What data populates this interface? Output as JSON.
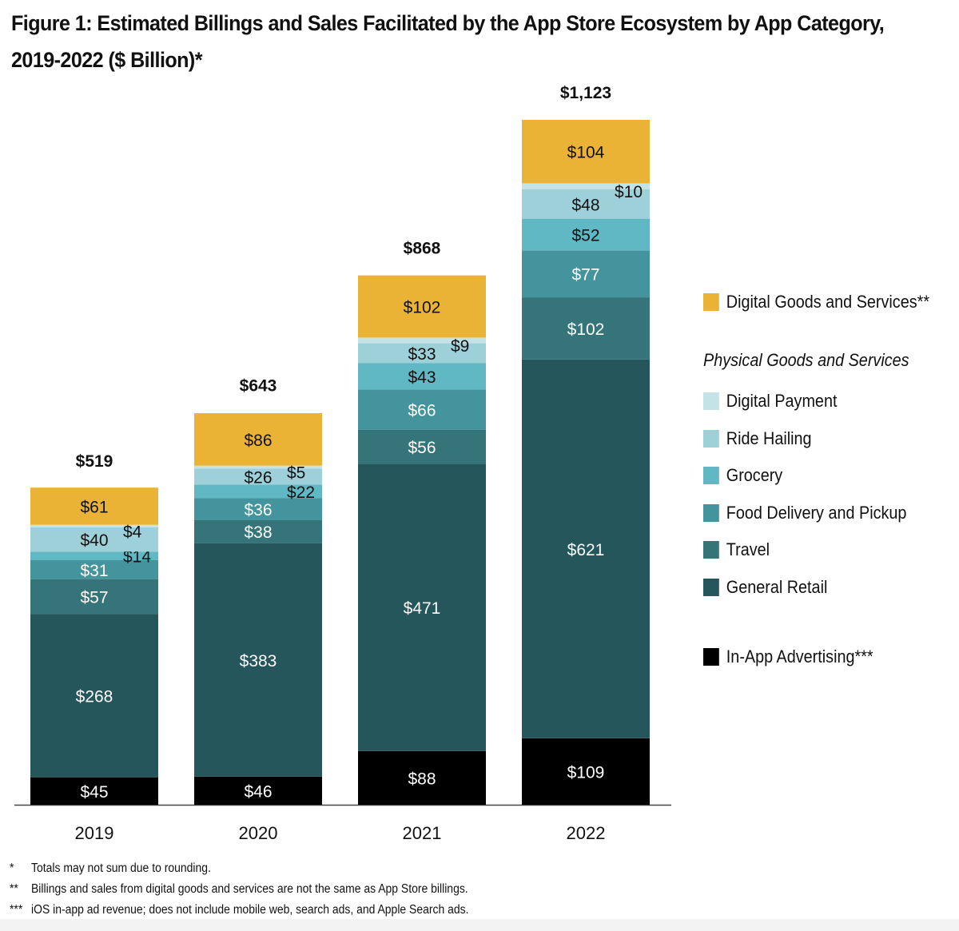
{
  "title": "Figure 1: Estimated Billings and Sales Facilitated by the App Store Ecosystem by App Category, 2019-2022 ($ Billion)*",
  "chart_data": {
    "type": "bar",
    "stacked": true,
    "title": "Figure 1: Estimated Billings and Sales Facilitated by the App Store Ecosystem by App Category, 2019-2022 ($ Billion)*",
    "xlabel": "",
    "ylabel": "",
    "ylim": [
      0,
      1123
    ],
    "grid": false,
    "legend_position": "right",
    "categories": [
      "2019",
      "2020",
      "2021",
      "2022"
    ],
    "totals": [
      519,
      643,
      868,
      1123
    ],
    "total_labels": [
      "$519",
      "$643",
      "$868",
      "$1,123"
    ],
    "series": [
      {
        "name": "In-App Advertising***",
        "color": "#000000",
        "label_color": "#ffffff",
        "values": [
          45,
          46,
          88,
          109
        ]
      },
      {
        "name": "General Retail",
        "color": "#24565c",
        "label_color": "#ffffff",
        "values": [
          268,
          383,
          471,
          621
        ]
      },
      {
        "name": "Travel",
        "color": "#357479",
        "label_color": "#ffffff",
        "values": [
          57,
          38,
          56,
          102
        ]
      },
      {
        "name": "Food Delivery and Pickup",
        "color": "#43949c",
        "label_color": "#ffffff",
        "values": [
          31,
          36,
          66,
          77
        ]
      },
      {
        "name": "Grocery",
        "color": "#5fb8c3",
        "label_color": "#111111",
        "values": [
          14,
          22,
          43,
          52
        ]
      },
      {
        "name": "Ride Hailing",
        "color": "#9dd0d8",
        "label_color": "#111111",
        "values": [
          40,
          26,
          33,
          48
        ]
      },
      {
        "name": "Digital Payment",
        "color": "#c4e3e7",
        "label_color": "#111111",
        "values": [
          4,
          5,
          9,
          10
        ]
      },
      {
        "name": "Digital Goods and Services**",
        "color": "#ebb336",
        "label_color": "#111111",
        "values": [
          61,
          86,
          102,
          104
        ]
      }
    ],
    "outside_labels": [
      {
        "category": "2019",
        "series": "Digital Payment",
        "text": "$4"
      },
      {
        "category": "2019",
        "series": "Grocery",
        "text": "$14"
      },
      {
        "category": "2020",
        "series": "Digital Payment",
        "text": "$5"
      },
      {
        "category": "2020",
        "series": "Grocery",
        "text": "$22"
      },
      {
        "category": "2021",
        "series": "Digital Payment",
        "text": "$9"
      },
      {
        "category": "2022",
        "series": "Digital Payment",
        "text": "$10"
      }
    ]
  },
  "legend": {
    "digital_goods": "Digital Goods and Services**",
    "physical_heading": "Physical Goods and Services",
    "physical_items": [
      "Digital Payment",
      "Ride Hailing",
      "Grocery",
      "Food Delivery and Pickup",
      "Travel",
      "General Retail"
    ],
    "advertising": "In-App Advertising***",
    "colors": {
      "digital_goods": "#ebb336",
      "physical": [
        "#c4e3e7",
        "#9dd0d8",
        "#5fb8c3",
        "#43949c",
        "#357479",
        "#24565c"
      ],
      "advertising": "#000000"
    }
  },
  "footnotes": [
    {
      "marker": "*",
      "text": "Totals may not sum due to rounding."
    },
    {
      "marker": "**",
      "text": "Billings and sales from digital goods and services are not the same as App Store billings."
    },
    {
      "marker": "***",
      "text": "iOS in-app ad revenue; does not include mobile web, search ads, and Apple Search ads."
    }
  ]
}
